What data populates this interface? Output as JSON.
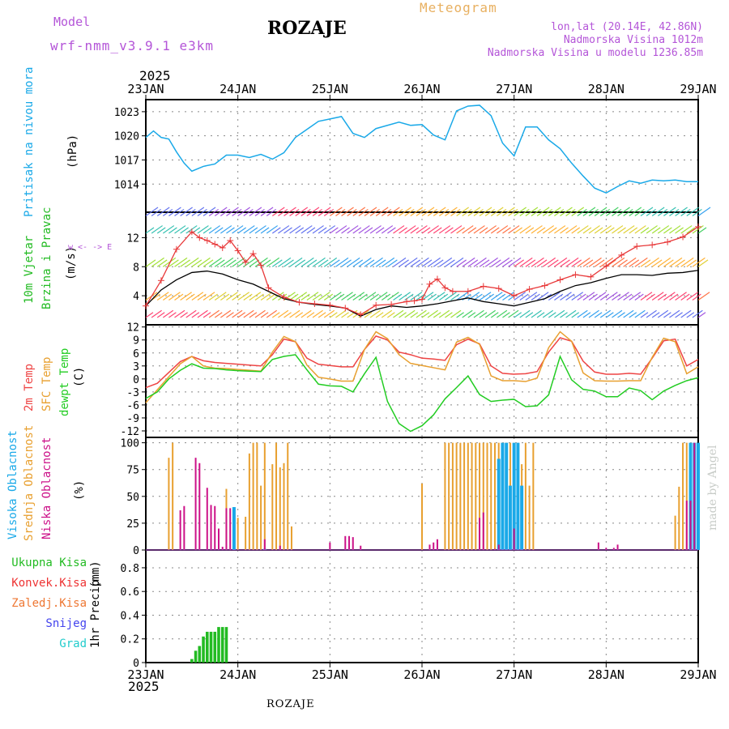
{
  "header": {
    "model_label": "Model",
    "model_name": "wrf-nmm_v3.9.1 e3km",
    "station": "ROZAJE",
    "product": "Meteogram",
    "coords": "lon,lat (20.14E, 42.86N)",
    "elevation": "Nadmorska Visina 1012m",
    "model_elevation": "Nadmorska Visina u modelu 1236.85m",
    "year": "2025",
    "footer_station": "ROZAJE",
    "credit": "made by Angel"
  },
  "colors": {
    "pressure": "#1aa9e8",
    "wind_speed": "#e8393a",
    "wind_mean": "#000000",
    "temp_2m": "#ee4444",
    "temp_sfc": "#e8a030",
    "dewpoint": "#22cc22",
    "cloud_high": "#1aa9e8",
    "cloud_mid": "#e8a030",
    "cloud_low": "#cc1188",
    "precip_total": "#22bb22",
    "axis_text": "#000000",
    "header_purple": "#b455d8",
    "header_orange": "#e8b060"
  },
  "time_axis": {
    "ticks": [
      "23JAN",
      "24JAN",
      "25JAN",
      "26JAN",
      "27JAN",
      "28JAN",
      "29JAN"
    ],
    "start_hour": 0,
    "end_hour": 144
  },
  "chart_data": [
    {
      "type": "line",
      "panel": "pressure",
      "title": "Pritisak na nivou mora",
      "ylabel": "(hPa)",
      "yticks": [
        1014,
        1017,
        1020,
        1023
      ],
      "ylim": [
        1010.5,
        1024.5
      ],
      "series": [
        {
          "name": "Pritisak na nivou mora",
          "x": [
            0,
            2,
            4,
            6,
            8,
            10,
            12,
            15,
            18,
            21,
            24,
            27,
            30,
            33,
            36,
            39,
            42,
            45,
            48,
            51,
            54,
            57,
            60,
            63,
            66,
            69,
            72,
            75,
            78,
            81,
            84,
            87,
            90,
            93,
            96,
            99,
            102,
            105,
            108,
            111,
            114,
            117,
            120,
            123,
            126,
            129,
            132,
            135,
            138,
            141,
            144
          ],
          "y": [
            1019.8,
            1020.6,
            1019.8,
            1019.6,
            1018.0,
            1016.6,
            1015.6,
            1016.2,
            1016.5,
            1017.6,
            1017.6,
            1017.3,
            1017.7,
            1017.1,
            1017.9,
            1019.8,
            1020.8,
            1021.8,
            1022.1,
            1022.4,
            1020.3,
            1019.8,
            1020.9,
            1021.3,
            1021.7,
            1021.3,
            1021.4,
            1020.1,
            1019.5,
            1023.1,
            1023.7,
            1023.8,
            1022.5,
            1019.1,
            1017.5,
            1021.1,
            1021.1,
            1019.5,
            1018.4,
            1016.6,
            1015.0,
            1013.5,
            1012.9,
            1013.7,
            1014.4,
            1014.1,
            1014.5,
            1014.4,
            1014.5,
            1014.3,
            1014.3
          ]
        }
      ]
    },
    {
      "type": "line",
      "panel": "wind",
      "title": "10m Vjetar Brzina i Pravac",
      "ylabel": "(m/s)",
      "yticks": [
        4,
        8,
        12
      ],
      "ylim": [
        0,
        15.5
      ],
      "compass": "w <- -> E",
      "series": [
        {
          "name": "Brzina (mean)",
          "x": [
            0,
            4,
            8,
            12,
            16,
            20,
            24,
            28,
            32,
            36,
            40,
            44,
            48,
            52,
            56,
            60,
            64,
            68,
            72,
            76,
            80,
            84,
            88,
            92,
            96,
            100,
            104,
            108,
            112,
            116,
            120,
            124,
            128,
            132,
            136,
            140,
            144
          ],
          "y": [
            2.6,
            4.8,
            6.2,
            7.2,
            7.4,
            7.0,
            6.2,
            5.6,
            4.6,
            3.6,
            3.1,
            2.8,
            2.6,
            2.3,
            1.2,
            2.1,
            2.6,
            2.4,
            2.6,
            2.9,
            3.3,
            3.7,
            3.2,
            2.9,
            2.6,
            3.1,
            3.6,
            4.6,
            5.4,
            5.8,
            6.4,
            6.9,
            6.9,
            6.8,
            7.1,
            7.2,
            7.5
          ]
        },
        {
          "name": "Udari (gust)",
          "x": [
            0,
            4,
            8,
            12,
            14,
            16,
            18,
            20,
            22,
            24,
            26,
            28,
            30,
            32,
            36,
            40,
            44,
            48,
            52,
            56,
            60,
            64,
            68,
            70,
            72,
            74,
            76,
            78,
            80,
            84,
            88,
            92,
            96,
            100,
            104,
            108,
            112,
            116,
            120,
            124,
            128,
            132,
            136,
            140,
            144
          ],
          "y": [
            2.6,
            6.1,
            10.4,
            12.8,
            12.0,
            11.6,
            11.1,
            10.6,
            11.6,
            10.2,
            8.6,
            9.8,
            8.2,
            5.1,
            3.8,
            3.1,
            2.9,
            2.7,
            2.3,
            1.4,
            2.7,
            2.8,
            3.2,
            3.3,
            3.5,
            5.6,
            6.3,
            5.1,
            4.6,
            4.6,
            5.3,
            5.0,
            4.0,
            4.9,
            5.4,
            6.2,
            6.9,
            6.6,
            8.1,
            9.6,
            10.8,
            11.0,
            11.4,
            12.1,
            13.5
          ]
        }
      ]
    },
    {
      "type": "line",
      "panel": "temperature",
      "title": "2m Temp / SFC Temp / dewpt Temp",
      "ylabel": "(C)",
      "yticks": [
        -12,
        -9,
        -6,
        -3,
        0,
        3,
        6,
        9,
        12
      ],
      "ylim": [
        -13.5,
        12.5
      ],
      "series": [
        {
          "name": "2m Temp",
          "x": [
            0,
            3,
            6,
            9,
            12,
            15,
            18,
            21,
            24,
            27,
            30,
            33,
            36,
            39,
            42,
            45,
            48,
            51,
            54,
            57,
            60,
            63,
            66,
            69,
            72,
            75,
            78,
            81,
            84,
            87,
            90,
            93,
            96,
            99,
            102,
            105,
            108,
            111,
            114,
            117,
            120,
            123,
            126,
            129,
            132,
            135,
            138,
            141,
            144
          ],
          "y": [
            -2.0,
            -1.0,
            1.5,
            4.0,
            5.2,
            4.2,
            3.8,
            3.6,
            3.4,
            3.2,
            3.0,
            5.6,
            9.2,
            8.6,
            4.8,
            3.4,
            3.1,
            2.8,
            2.8,
            6.8,
            9.9,
            9.0,
            6.2,
            5.6,
            4.8,
            4.6,
            4.3,
            7.9,
            9.2,
            8.1,
            3.0,
            1.3,
            1.1,
            1.2,
            1.7,
            6.2,
            9.5,
            8.7,
            4.1,
            1.6,
            1.1,
            1.1,
            1.3,
            1.1,
            4.8,
            8.8,
            9.2,
            3.0,
            4.5
          ]
        },
        {
          "name": "SFC Temp",
          "x": [
            0,
            3,
            6,
            9,
            12,
            15,
            18,
            21,
            24,
            27,
            30,
            33,
            36,
            39,
            42,
            45,
            48,
            51,
            54,
            57,
            60,
            63,
            66,
            69,
            72,
            75,
            78,
            81,
            84,
            87,
            90,
            93,
            96,
            99,
            102,
            105,
            108,
            111,
            114,
            117,
            120,
            123,
            126,
            129,
            132,
            135,
            138,
            141,
            144
          ],
          "y": [
            -5.5,
            -2.5,
            0.5,
            3.5,
            5.2,
            3.0,
            2.5,
            2.4,
            2.2,
            2.0,
            1.8,
            6.2,
            9.8,
            8.6,
            3.2,
            0.4,
            0.0,
            -0.5,
            -0.5,
            6.8,
            10.9,
            9.3,
            5.6,
            3.6,
            3.1,
            2.6,
            2.1,
            8.5,
            9.6,
            8.0,
            0.7,
            -0.4,
            -0.4,
            -0.6,
            0.2,
            7.2,
            10.9,
            8.7,
            1.4,
            -0.4,
            -0.5,
            -0.5,
            -0.4,
            -0.4,
            5.0,
            9.4,
            8.6,
            1.2,
            2.8
          ]
        },
        {
          "name": "dewpt Temp",
          "x": [
            0,
            3,
            6,
            9,
            12,
            15,
            18,
            21,
            24,
            27,
            30,
            33,
            36,
            39,
            42,
            45,
            48,
            51,
            54,
            57,
            60,
            63,
            66,
            69,
            72,
            75,
            78,
            81,
            84,
            87,
            90,
            93,
            96,
            99,
            102,
            105,
            108,
            111,
            114,
            117,
            120,
            123,
            126,
            129,
            132,
            135,
            138,
            141,
            144
          ],
          "y": [
            -4.5,
            -3.0,
            0.0,
            2.0,
            3.5,
            2.5,
            2.4,
            2.1,
            1.9,
            1.8,
            1.7,
            4.5,
            5.2,
            5.6,
            2.1,
            -1.2,
            -1.6,
            -1.7,
            -3.0,
            1.2,
            5.0,
            -5.2,
            -10.3,
            -12.1,
            -10.8,
            -8.3,
            -4.6,
            -2.0,
            0.7,
            -3.6,
            -5.2,
            -4.9,
            -4.7,
            -6.4,
            -6.2,
            -3.7,
            5.2,
            -0.2,
            -2.4,
            -2.8,
            -4.1,
            -4.1,
            -2.1,
            -2.7,
            -4.8,
            -2.8,
            -1.5,
            -0.4,
            0.3
          ]
        }
      ]
    },
    {
      "type": "bar",
      "panel": "cloud",
      "title": "Visoka / Srednja / Niska Oblacnost",
      "ylabel": "(%)",
      "yticks": [
        0,
        25,
        50,
        75,
        100
      ],
      "ylim": [
        0,
        105
      ],
      "series": [
        {
          "name": "Srednja Oblacnost",
          "x": [
            6,
            7,
            21,
            24,
            26,
            27,
            28,
            29,
            30,
            31,
            33,
            34,
            35,
            36,
            37,
            38,
            72,
            78,
            79,
            80,
            81,
            82,
            83,
            84,
            85,
            86,
            87,
            88,
            89,
            90,
            91,
            92,
            93,
            94,
            95,
            98,
            99,
            100,
            101,
            138,
            139,
            140,
            141,
            142
          ],
          "y": [
            86,
            100,
            57,
            30,
            31,
            90,
            100,
            100,
            60,
            100,
            80,
            100,
            77,
            81,
            100,
            22,
            62,
            100,
            100,
            100,
            100,
            100,
            100,
            100,
            100,
            100,
            100,
            100,
            100,
            100,
            100,
            100,
            100,
            100,
            100,
            80,
            100,
            60,
            100,
            32,
            59,
            100,
            100,
            100
          ]
        },
        {
          "name": "Visoka Oblacnost",
          "x": [
            23,
            31,
            92,
            93,
            94,
            95,
            96,
            97,
            98,
            142,
            143,
            144
          ],
          "y": [
            40,
            1,
            85,
            100,
            100,
            60,
            100,
            100,
            60,
            100,
            100,
            100
          ]
        },
        {
          "name": "Niska Oblacnost",
          "x": [
            9,
            10,
            13,
            14,
            16,
            17,
            18,
            19,
            20,
            21,
            22,
            31,
            35,
            48,
            52,
            53,
            54,
            56,
            74,
            75,
            76,
            87,
            88,
            91,
            92,
            96,
            118,
            120,
            122,
            123,
            141,
            142,
            143
          ],
          "y": [
            37,
            41,
            86,
            81,
            58,
            42,
            41,
            20,
            3,
            39,
            39,
            10,
            4,
            7,
            13,
            13,
            12,
            4,
            5,
            7,
            10,
            30,
            35,
            1,
            5,
            20,
            7,
            2,
            2,
            5,
            46,
            46,
            100
          ]
        }
      ]
    },
    {
      "type": "bar",
      "panel": "precip",
      "title": "1hr Precip",
      "ylabel": "(mm)",
      "yticks": [
        0,
        0.2,
        0.4,
        0.6,
        0.8
      ],
      "ylim": [
        0,
        0.95
      ],
      "legend": [
        "Ukupna Kisa",
        "Konvek.Kisa",
        "Zaledj.Kisa",
        "Snijeg",
        "Grad"
      ],
      "series": [
        {
          "name": "Ukupna Kisa",
          "x": [
            12,
            13,
            14,
            15,
            16,
            17,
            18,
            19,
            20,
            21
          ],
          "y": [
            0.03,
            0.1,
            0.14,
            0.22,
            0.26,
            0.26,
            0.26,
            0.3,
            0.3,
            0.3
          ]
        }
      ]
    }
  ],
  "panels": {
    "pressure": {
      "label1": "Pritisak na nivou mora",
      "label2": "(hPa)"
    },
    "wind": {
      "label1": "10m Vjetar",
      "label2": "Brzina i Pravac",
      "label3": "(m/s)"
    },
    "temp": {
      "label1": "2m Temp",
      "label2": "SFC Temp",
      "label3": "dewpt Temp",
      "label4": "(C)"
    },
    "cloud": {
      "label1": "Visoka Oblacnost",
      "label2": "Srednja Oblacnost",
      "label3": "Niska Oblacnost",
      "label4": "(%)"
    },
    "precip": {
      "label1": "1hr Precip",
      "label2": "(mm)"
    }
  },
  "legend": {
    "items": [
      "Ukupna Kisa",
      "Konvek.Kisa",
      "Zaledj.Kisa",
      "Snijeg",
      "Grad"
    ],
    "colors": [
      "#22bb22",
      "#ee3333",
      "#ee7733",
      "#4444ee",
      "#22cccc"
    ]
  }
}
